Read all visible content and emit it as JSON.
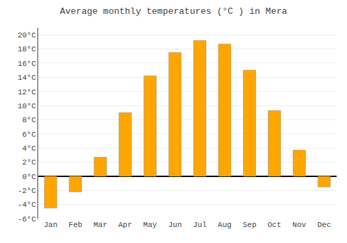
{
  "chart_data": {
    "type": "bar",
    "title": "Average monthly temperatures (°C ) in Mera",
    "categories": [
      "Jan",
      "Feb",
      "Mar",
      "Apr",
      "May",
      "Jun",
      "Jul",
      "Aug",
      "Sep",
      "Oct",
      "Nov",
      "Dec"
    ],
    "values": [
      -4.5,
      -2.2,
      2.7,
      9.0,
      14.2,
      17.5,
      19.2,
      18.7,
      15.0,
      9.3,
      3.7,
      -1.5
    ],
    "color": "#FFA500",
    "ylim": [
      -6,
      21
    ],
    "yticks": [
      {
        "value": -6,
        "label": "-6°C"
      },
      {
        "value": -4,
        "label": "-4°C"
      },
      {
        "value": -2,
        "label": "-2°C"
      },
      {
        "value": 0,
        "label": "0°C"
      },
      {
        "value": 2,
        "label": "2°C"
      },
      {
        "value": 4,
        "label": "4°C"
      },
      {
        "value": 6,
        "label": "6°C"
      },
      {
        "value": 8,
        "label": "8°C"
      },
      {
        "value": 10,
        "label": "10°C"
      },
      {
        "value": 12,
        "label": "12°C"
      },
      {
        "value": 14,
        "label": "14°C"
      },
      {
        "value": 16,
        "label": "16°C"
      },
      {
        "value": 18,
        "label": "18°C"
      },
      {
        "value": 20,
        "label": "20°C"
      }
    ],
    "grid": true
  }
}
